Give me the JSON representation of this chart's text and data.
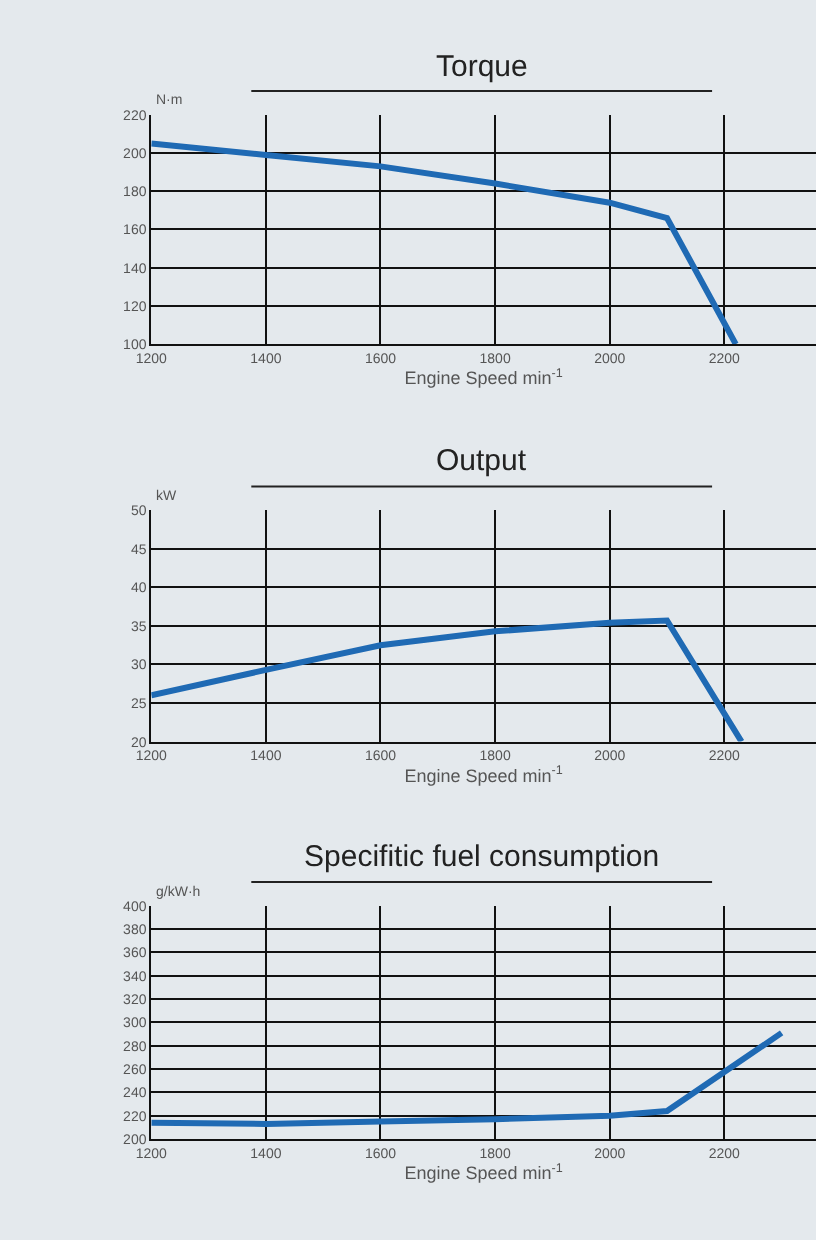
{
  "chart_data": [
    {
      "type": "line",
      "title": "Torque",
      "ylabel": "N·m",
      "xlabel": "Engine Speed min$^{-1}$",
      "x": [
        1200,
        1400,
        1600,
        1800,
        2000,
        2100,
        2220
      ],
      "values": [
        205,
        199,
        193,
        184,
        174,
        166,
        100
      ],
      "color": "#1f6ab4",
      "xlim": [
        1200,
        2360
      ],
      "xticks": [
        1200,
        1400,
        1600,
        1800,
        2000,
        2200
      ],
      "ylim": [
        100,
        220
      ],
      "yticks": [
        100,
        120,
        140,
        160,
        180,
        200,
        220
      ],
      "grid": true,
      "marker": "none",
      "line_style": "solid"
    },
    {
      "type": "line",
      "title": "Output",
      "ylabel": "kW",
      "xlabel": "Engine Speed min$^{-1}$",
      "x": [
        1200,
        1400,
        1600,
        1800,
        2000,
        2100,
        2230
      ],
      "values": [
        26,
        29.3,
        32.5,
        34.3,
        35.4,
        35.7,
        20
      ],
      "color": "#1f6ab4",
      "xlim": [
        1200,
        2360
      ],
      "xticks": [
        1200,
        1400,
        1600,
        1800,
        2000,
        2200
      ],
      "ylim": [
        20,
        50
      ],
      "yticks": [
        20,
        25,
        30,
        35,
        40,
        45,
        50
      ],
      "grid": true,
      "marker": "none",
      "line_style": "solid"
    },
    {
      "type": "line",
      "title": "Specifitic fuel consumption",
      "ylabel": "g/kW·h",
      "xlabel": "Engine Speed min$^{-1}$",
      "x": [
        1200,
        1400,
        1600,
        1800,
        2000,
        2100,
        2300
      ],
      "values": [
        214,
        213,
        215,
        217,
        220,
        224,
        291
      ],
      "color": "#1f6ab4",
      "xlim": [
        1200,
        2360
      ],
      "xticks": [
        1200,
        1400,
        1600,
        1800,
        2000,
        2200
      ],
      "ylim": [
        200,
        400
      ],
      "yticks": [
        200,
        220,
        240,
        260,
        280,
        300,
        320,
        340,
        360,
        380,
        400
      ],
      "grid": true,
      "marker": "none",
      "line_style": "solid"
    }
  ]
}
